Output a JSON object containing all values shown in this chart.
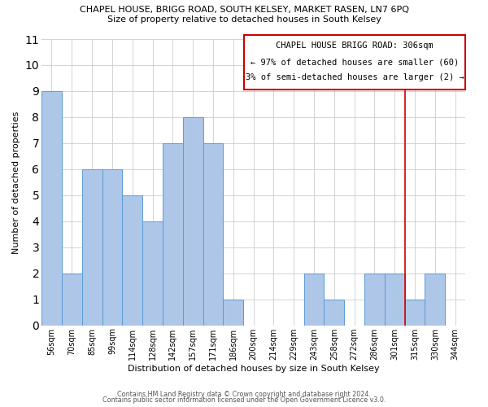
{
  "title_line1": "CHAPEL HOUSE, BRIGG ROAD, SOUTH KELSEY, MARKET RASEN, LN7 6PQ",
  "title_line2": "Size of property relative to detached houses in South Kelsey",
  "xlabel": "Distribution of detached houses by size in South Kelsey",
  "ylabel": "Number of detached properties",
  "bar_labels": [
    "56sqm",
    "70sqm",
    "85sqm",
    "99sqm",
    "114sqm",
    "128sqm",
    "142sqm",
    "157sqm",
    "171sqm",
    "186sqm",
    "200sqm",
    "214sqm",
    "229sqm",
    "243sqm",
    "258sqm",
    "272sqm",
    "286sqm",
    "301sqm",
    "315sqm",
    "330sqm",
    "344sqm"
  ],
  "bar_heights": [
    9,
    2,
    6,
    6,
    5,
    4,
    7,
    8,
    7,
    1,
    0,
    0,
    0,
    2,
    1,
    0,
    2,
    2,
    1,
    2,
    0
  ],
  "bar_color": "#aec6e8",
  "bar_edgecolor": "#5b9bd5",
  "vline_color": "#cc0000",
  "annotation_title": "CHAPEL HOUSE BRIGG ROAD: 306sqm",
  "annotation_line1": "← 97% of detached houses are smaller (60)",
  "annotation_line2": "3% of semi-detached houses are larger (2) →",
  "annotation_box_edgecolor": "#cc0000",
  "ylim": [
    0,
    11
  ],
  "yticks": [
    0,
    1,
    2,
    3,
    4,
    5,
    6,
    7,
    8,
    9,
    10,
    11
  ],
  "footer_line1": "Contains HM Land Registry data © Crown copyright and database right 2024.",
  "footer_line2": "Contains public sector information licensed under the Open Government Licence v3.0.",
  "background_color": "#ffffff",
  "grid_color": "#cccccc",
  "title_fontsize": 8.0,
  "subtitle_fontsize": 8.0,
  "axis_label_fontsize": 8.0,
  "tick_fontsize": 7.0,
  "annotation_fontsize": 7.5,
  "footer_fontsize": 5.8
}
